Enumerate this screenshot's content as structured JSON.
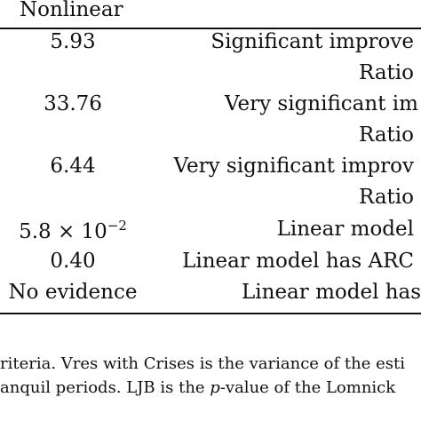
{
  "table": {
    "header": "Nonlinear",
    "rows": [
      {
        "left": "5.93",
        "right": "Significant improve"
      },
      {
        "left": "",
        "right": "Ratio"
      },
      {
        "left": "33.76",
        "right": "Very significant im"
      },
      {
        "left": "",
        "right": "Ratio"
      },
      {
        "left": "6.44",
        "right": "Very significant improv"
      },
      {
        "left": "",
        "right": "Ratio"
      },
      {
        "left_base": "5.8 × 10",
        "left_exp": "−2",
        "right": "Linear model"
      },
      {
        "left": "0.40",
        "right": "Linear model has ARC"
      },
      {
        "left": "No evidence",
        "right": "Linear model has"
      }
    ]
  },
  "caption": {
    "line1": "riteria. Vres with Crises is the variance of the esti",
    "line2_a": "anquil periods. LJB is the ",
    "line2_p": "p",
    "line2_b": "-value of the Lomnick"
  }
}
